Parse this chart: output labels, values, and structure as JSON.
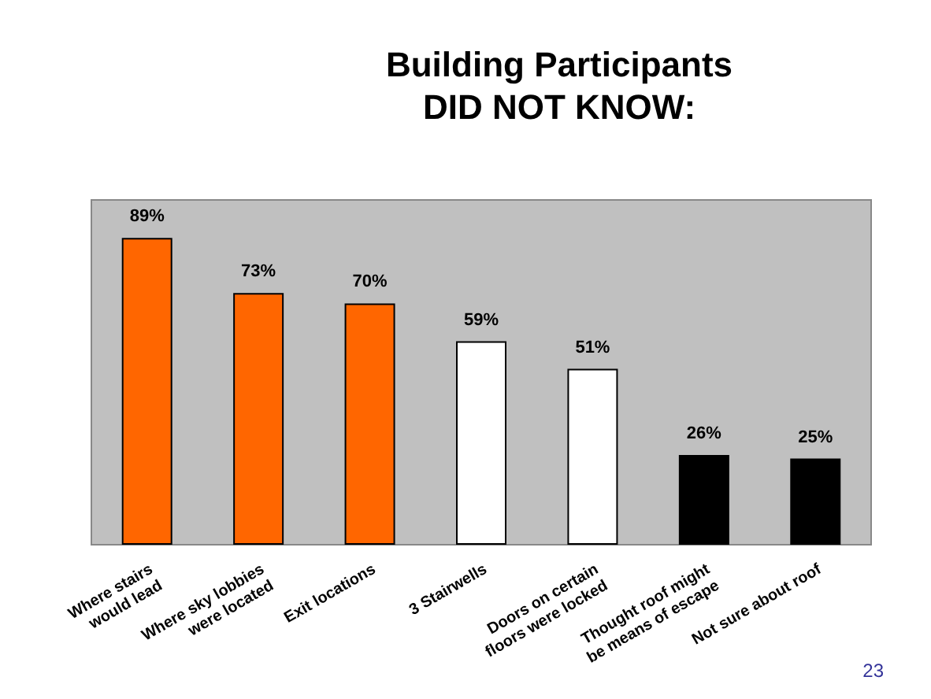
{
  "chart_data": {
    "type": "bar",
    "title": "Building Participants\nDID NOT KNOW:",
    "categories": [
      "Where stairs would lead",
      "Where sky lobbies were located",
      "Exit locations",
      "3 Stairwells",
      "Doors on certain floors were locked",
      "Thought roof might be means of escape",
      "Not sure about roof"
    ],
    "values": [
      89,
      73,
      70,
      59,
      51,
      26,
      25
    ],
    "value_labels": [
      "89%",
      "73%",
      "70%",
      "59%",
      "51%",
      "26%",
      "25%"
    ],
    "colors": [
      "#ff6600",
      "#ff6600",
      "#ff6600",
      "#ffffff",
      "#ffffff",
      "#000000",
      "#000000"
    ],
    "grid": false,
    "annotations": [
      "23"
    ]
  }
}
